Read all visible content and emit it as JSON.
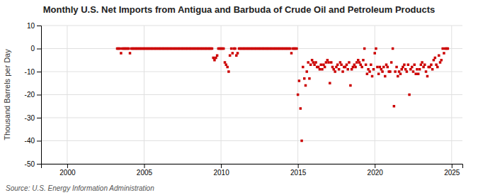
{
  "chart_data": {
    "type": "scatter",
    "title": "Monthly U.S. Net Imports from Antigua and Barbuda of Crude Oil and Petroleum Products",
    "ylabel": "Thousand Barrels per Day",
    "source": "Source: U.S. Energy Information Administration",
    "color": "#cc0000",
    "marker": "square",
    "grid": true,
    "xlim": [
      1998.3,
      2025.7
    ],
    "xticks": [
      2000,
      2005,
      2010,
      2015,
      2020,
      2025
    ],
    "ylim": [
      -50,
      10
    ],
    "yticks": [
      -50,
      -40,
      -30,
      -20,
      -10,
      0,
      10
    ],
    "x": [
      2003.25,
      2003.33,
      2003.42,
      2003.5,
      2003.58,
      2003.67,
      2003.75,
      2003.83,
      2003.92,
      2004.0,
      2004.08,
      2004.17,
      2004.25,
      2004.33,
      2004.42,
      2004.5,
      2004.58,
      2004.67,
      2004.75,
      2004.83,
      2004.92,
      2005.0,
      2005.08,
      2005.17,
      2005.25,
      2005.33,
      2005.42,
      2005.5,
      2005.58,
      2005.67,
      2005.75,
      2005.83,
      2005.92,
      2006.0,
      2006.08,
      2006.17,
      2006.25,
      2006.33,
      2006.42,
      2006.5,
      2006.58,
      2006.67,
      2006.75,
      2006.83,
      2006.92,
      2007.0,
      2007.08,
      2007.17,
      2007.25,
      2007.33,
      2007.42,
      2007.5,
      2007.58,
      2007.67,
      2007.75,
      2007.83,
      2007.92,
      2008.0,
      2008.08,
      2008.17,
      2008.25,
      2008.33,
      2008.42,
      2008.5,
      2008.58,
      2008.67,
      2008.75,
      2008.83,
      2008.92,
      2009.0,
      2009.08,
      2009.17,
      2009.25,
      2009.33,
      2009.42,
      2009.5,
      2009.58,
      2009.67,
      2009.75,
      2009.83,
      2009.92,
      2010.0,
      2010.08,
      2010.17,
      2010.25,
      2010.33,
      2010.42,
      2010.5,
      2010.58,
      2010.67,
      2010.75,
      2010.83,
      2010.92,
      2011.0,
      2011.08,
      2011.17,
      2011.25,
      2011.33,
      2011.42,
      2011.5,
      2011.58,
      2011.67,
      2011.75,
      2011.83,
      2011.92,
      2012.0,
      2012.08,
      2012.17,
      2012.25,
      2012.33,
      2012.42,
      2012.5,
      2012.58,
      2012.67,
      2012.75,
      2012.83,
      2012.92,
      2013.0,
      2013.08,
      2013.17,
      2013.25,
      2013.33,
      2013.42,
      2013.5,
      2013.58,
      2013.67,
      2013.75,
      2013.83,
      2013.92,
      2014.0,
      2014.08,
      2014.17,
      2014.25,
      2014.33,
      2014.42,
      2014.5,
      2014.58,
      2014.67,
      2014.75,
      2014.83,
      2014.92,
      2015.0,
      2015.08,
      2015.17,
      2015.25,
      2015.33,
      2015.42,
      2015.5,
      2015.58,
      2015.67,
      2015.75,
      2015.83,
      2015.92,
      2016.0,
      2016.08,
      2016.17,
      2016.25,
      2016.33,
      2016.42,
      2016.5,
      2016.58,
      2016.67,
      2016.75,
      2016.83,
      2016.92,
      2017.0,
      2017.08,
      2017.17,
      2017.25,
      2017.33,
      2017.42,
      2017.5,
      2017.58,
      2017.67,
      2017.75,
      2017.83,
      2017.92,
      2018.0,
      2018.08,
      2018.17,
      2018.25,
      2018.33,
      2018.42,
      2018.5,
      2018.58,
      2018.67,
      2018.75,
      2018.83,
      2018.92,
      2019.0,
      2019.08,
      2019.17,
      2019.25,
      2019.33,
      2019.42,
      2019.5,
      2019.58,
      2019.67,
      2019.75,
      2019.83,
      2019.92,
      2020.0,
      2020.08,
      2020.17,
      2020.25,
      2020.33,
      2020.42,
      2020.5,
      2020.58,
      2020.67,
      2020.75,
      2020.83,
      2020.92,
      2021.0,
      2021.08,
      2021.17,
      2021.25,
      2021.33,
      2021.42,
      2021.5,
      2021.58,
      2021.67,
      2021.75,
      2021.83,
      2021.92,
      2022.0,
      2022.08,
      2022.17,
      2022.25,
      2022.33,
      2022.42,
      2022.5,
      2022.58,
      2022.67,
      2022.75,
      2022.83,
      2022.92,
      2023.0,
      2023.08,
      2023.17,
      2023.25,
      2023.33,
      2023.42,
      2023.5,
      2023.58,
      2023.67,
      2023.75,
      2023.83,
      2023.92,
      2024.0,
      2024.08,
      2024.17,
      2024.25,
      2024.33,
      2024.42,
      2024.5,
      2024.58,
      2024.67,
      2024.75
    ],
    "values": [
      0,
      0,
      0,
      -2,
      0,
      0,
      0,
      0,
      0,
      0,
      -2,
      0,
      0,
      0,
      0,
      0,
      0,
      0,
      0,
      0,
      0,
      0,
      0,
      0,
      0,
      0,
      0,
      0,
      0,
      0,
      0,
      0,
      0,
      0,
      0,
      0,
      0,
      0,
      0,
      0,
      0,
      0,
      0,
      0,
      0,
      0,
      0,
      0,
      0,
      0,
      0,
      0,
      0,
      0,
      0,
      0,
      0,
      0,
      0,
      0,
      0,
      0,
      0,
      0,
      0,
      0,
      0,
      0,
      0,
      0,
      0,
      0,
      0,
      0,
      0,
      -4,
      -5,
      -4,
      -3,
      0,
      0,
      0,
      0,
      0,
      -6,
      -7,
      -8,
      -10,
      -3,
      0,
      -2,
      0,
      0,
      -3,
      -2,
      0,
      0,
      0,
      0,
      0,
      0,
      0,
      0,
      0,
      0,
      0,
      0,
      0,
      0,
      0,
      0,
      0,
      0,
      0,
      0,
      0,
      0,
      0,
      0,
      0,
      0,
      0,
      0,
      0,
      0,
      0,
      0,
      0,
      0,
      0,
      0,
      0,
      0,
      0,
      0,
      0,
      -2,
      0,
      0,
      0,
      0,
      -20,
      -14,
      -26,
      -40,
      -8,
      -13,
      -16,
      -10,
      -6,
      -13,
      -7,
      -5,
      -6,
      -7,
      -6,
      -8,
      -8,
      -9,
      -7,
      -9,
      -7,
      -8,
      -6,
      -5,
      -6,
      -15,
      -6,
      -8,
      -9,
      -10,
      -8,
      -7,
      -9,
      -6,
      -7,
      -10,
      -8,
      -8,
      -7,
      -9,
      -6,
      -16,
      -9,
      -8,
      -7,
      -8,
      -6,
      -5,
      -6,
      -7,
      -8,
      -5,
      0,
      -7,
      -11,
      -9,
      -10,
      -7,
      -12,
      -9,
      -2,
      0,
      -8,
      -11,
      -8,
      -9,
      -10,
      -8,
      -12,
      -7,
      -8,
      -10,
      -10,
      -6,
      0,
      -25,
      -10,
      -8,
      -12,
      -10,
      -11,
      -9,
      -8,
      -7,
      -9,
      -10,
      -7,
      -20,
      -9,
      -8,
      -10,
      -7,
      -11,
      -9,
      -11,
      -9,
      -7,
      -6,
      -8,
      -7,
      -10,
      -12,
      -8,
      -8,
      -7,
      -9,
      -5,
      -4,
      -7,
      -8,
      -3,
      -6,
      -5,
      0,
      -2,
      0,
      0,
      0
    ]
  }
}
